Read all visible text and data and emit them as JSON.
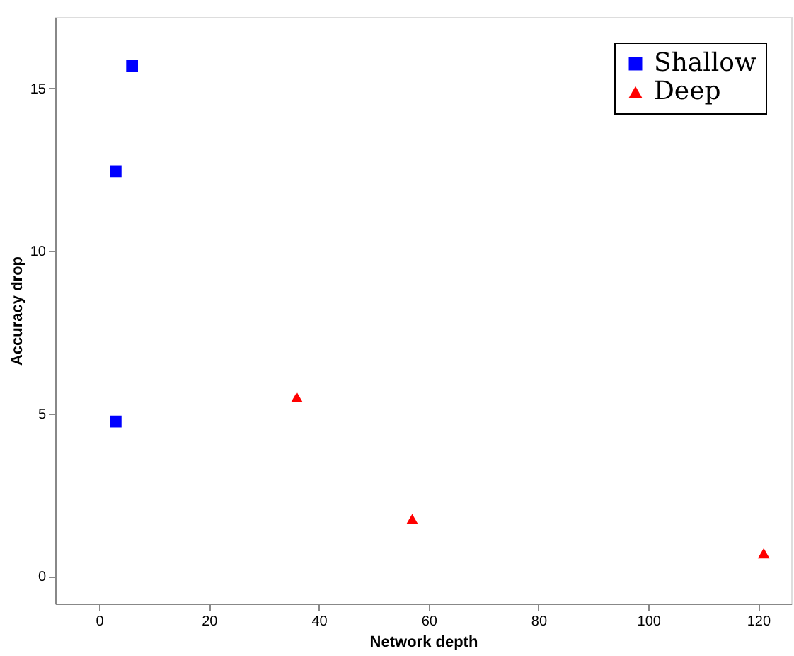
{
  "chart_data": {
    "type": "scatter",
    "xlabel": "Network depth",
    "ylabel": "Accuracy drop",
    "xlim": [
      -8,
      126
    ],
    "ylim": [
      -0.85,
      17.2
    ],
    "xticks": [
      0,
      20,
      40,
      60,
      80,
      100,
      120
    ],
    "yticks": [
      0,
      5,
      10,
      15
    ],
    "grid": false,
    "legend": "top right",
    "series": [
      {
        "name": "Shallow",
        "color": "#0000ff",
        "marker": "square",
        "x": [
          3,
          6,
          3
        ],
        "values": [
          12.45,
          15.7,
          4.75
        ]
      },
      {
        "name": "Deep",
        "color": "#ff0000",
        "marker": "triangle",
        "x": [
          36,
          57,
          121
        ],
        "values": [
          5.5,
          1.75,
          0.7
        ]
      }
    ]
  }
}
